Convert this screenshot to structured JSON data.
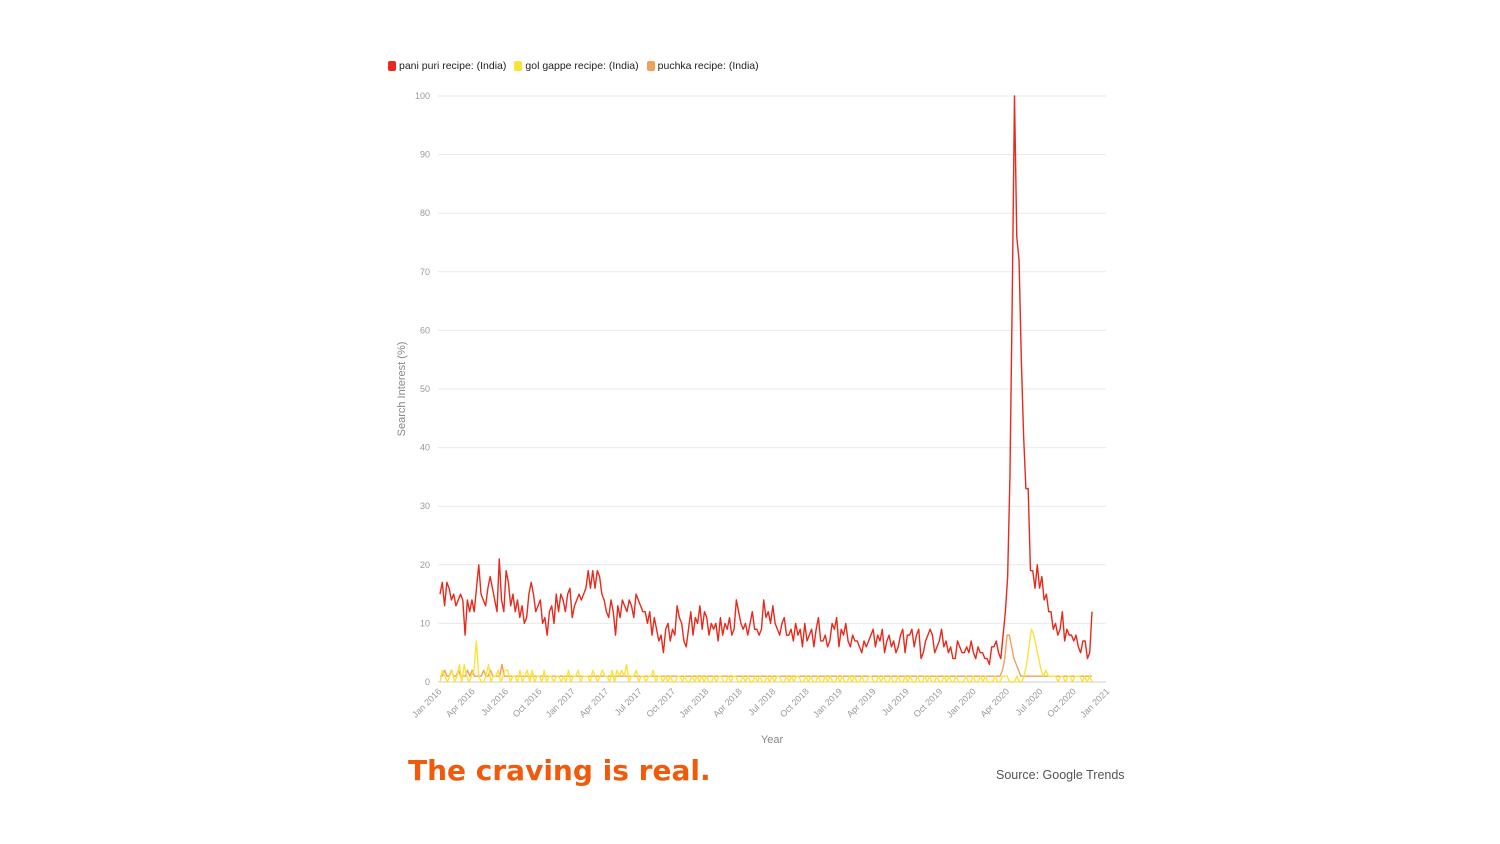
{
  "chart_data": {
    "type": "line",
    "xlabel": "Year",
    "ylabel": "Search Interest (%)",
    "ylim": [
      0,
      100
    ],
    "y_ticks": [
      "0",
      "10",
      "20",
      "30",
      "40",
      "50",
      "60",
      "70",
      "80",
      "90",
      "100"
    ],
    "x_ticks": [
      "Jan 2016",
      "Apr 2016",
      "Jul 2016",
      "Oct 2016",
      "Jan 2017",
      "Apr 2017",
      "Jul 2017",
      "Oct 2017",
      "Jan 2018",
      "Apr 2018",
      "Jul 2018",
      "Oct 2018",
      "Jan 2019",
      "Apr 2019",
      "Jul 2019",
      "Oct 2019",
      "Jan 2020",
      "Apr 2020",
      "Jul 2020",
      "Oct 2020",
      "Jan 2021"
    ],
    "x_start": "Jan 2016",
    "x_interval": "weekly",
    "grid": true,
    "legend_position": "top-left",
    "series": [
      {
        "name": "pani puri recipe: (India)",
        "color": "#e8291c",
        "values": [
          15,
          17,
          13,
          17,
          16,
          14,
          15,
          13,
          14,
          15,
          14,
          8,
          14,
          12,
          14,
          12,
          16,
          20,
          15,
          14,
          13,
          16,
          18,
          16,
          14,
          12,
          21,
          14,
          12,
          19,
          17,
          13,
          15,
          12,
          14,
          11,
          13,
          10,
          11,
          15,
          17,
          15,
          12,
          13,
          14,
          10,
          11,
          8,
          12,
          13,
          10,
          15,
          12,
          15,
          14,
          12,
          15,
          16,
          11,
          13,
          14,
          15,
          14,
          15,
          16,
          19,
          16,
          19,
          16,
          19,
          18,
          15,
          14,
          12,
          11,
          14,
          12,
          8,
          13,
          11,
          14,
          13,
          12,
          14,
          13,
          11,
          15,
          14,
          13,
          12,
          12,
          10,
          12,
          8,
          11,
          9,
          7,
          8,
          5,
          9,
          10,
          7,
          9,
          8,
          13,
          11,
          10,
          7,
          6,
          9,
          12,
          8,
          11,
          10,
          13,
          9,
          12,
          11,
          8,
          10,
          9,
          10,
          7,
          11,
          8,
          10,
          9,
          11,
          8,
          9,
          14,
          12,
          10,
          9,
          10,
          8,
          10,
          12,
          9,
          9,
          8,
          9,
          14,
          11,
          12,
          10,
          13,
          10,
          9,
          8,
          10,
          11,
          8,
          8,
          9,
          7,
          10,
          8,
          9,
          6,
          10,
          7,
          8,
          9,
          6,
          9,
          11,
          7,
          7,
          8,
          6,
          7,
          10,
          9,
          11,
          6,
          9,
          8,
          10,
          7,
          6,
          8,
          7,
          7,
          6,
          5,
          7,
          6,
          7,
          8,
          9,
          6,
          8,
          7,
          9,
          5,
          7,
          8,
          6,
          7,
          5,
          6,
          8,
          9,
          5,
          8,
          8,
          9,
          6,
          8,
          9,
          4,
          5,
          7,
          8,
          9,
          8,
          5,
          6,
          7,
          9,
          6,
          7,
          5,
          6,
          4,
          4,
          7,
          6,
          5,
          5,
          6,
          5,
          7,
          5,
          4,
          6,
          5,
          5,
          4,
          4,
          3,
          6,
          6,
          7,
          5,
          4,
          8,
          12,
          18,
          35,
          65,
          100,
          76,
          72,
          55,
          42,
          33,
          33,
          19,
          19,
          16,
          20,
          16,
          18,
          14,
          15,
          12,
          12,
          9,
          10,
          8,
          9,
          12,
          7,
          9,
          8,
          8,
          7,
          8,
          6,
          5,
          7,
          7,
          4,
          5,
          12
        ],
        "band": [
          "Jan 2016",
          "Jan 2021"
        ]
      },
      {
        "name": "gol gappe recipe: (India)",
        "color": "#fbe33a",
        "values": [
          0,
          2,
          1,
          0,
          1,
          2,
          0,
          1,
          3,
          0,
          3,
          1,
          0,
          1,
          2,
          7,
          1,
          0,
          0,
          1,
          3,
          0,
          1,
          1,
          2,
          0,
          1,
          2,
          2,
          0,
          1,
          1,
          0,
          2,
          0,
          1,
          2,
          0,
          2,
          0,
          1,
          1,
          0,
          2,
          0,
          1,
          1,
          0,
          1,
          1,
          0,
          1,
          0,
          2,
          0,
          1,
          1,
          2,
          0,
          1,
          1,
          1,
          0,
          2,
          1,
          0,
          1,
          2,
          1,
          1,
          0,
          2,
          0,
          2,
          1,
          2,
          1,
          3,
          0,
          1,
          1,
          2,
          0,
          1,
          1,
          0,
          1,
          1,
          2,
          0,
          1,
          1,
          0,
          1,
          0,
          1,
          0,
          0,
          1,
          1,
          0,
          1,
          0,
          0,
          1,
          0,
          1,
          0,
          1,
          0,
          1,
          0,
          0,
          1,
          0,
          1,
          1,
          0,
          0,
          1,
          0,
          1,
          1,
          0,
          0,
          1,
          0,
          1,
          0,
          0,
          1,
          0,
          1,
          0,
          0,
          1,
          0,
          1,
          0,
          1,
          1,
          0,
          0,
          1,
          0,
          1,
          0,
          1,
          1,
          0,
          0,
          1,
          0,
          1,
          0,
          0,
          1,
          0,
          0,
          1,
          0,
          1,
          0,
          0,
          1,
          0,
          1,
          0,
          0,
          1,
          0,
          1,
          0,
          0,
          1,
          0,
          0,
          1,
          1,
          0,
          0,
          1,
          0,
          1,
          0,
          0,
          1,
          0,
          0,
          1,
          0,
          0,
          1,
          0,
          1,
          0,
          0,
          1,
          0,
          0,
          1,
          0,
          1,
          0,
          0,
          1,
          0,
          0,
          1,
          0,
          1,
          0,
          0,
          1,
          0,
          0,
          0,
          1,
          0,
          0,
          1,
          0,
          0,
          1,
          0,
          1,
          0,
          0,
          0,
          1,
          0,
          0,
          1,
          1,
          1,
          0,
          0,
          0,
          1,
          0,
          0,
          1,
          3,
          6,
          9,
          8,
          6,
          4,
          2,
          1,
          2,
          1,
          1,
          1,
          1,
          0,
          1,
          1,
          0,
          1,
          1,
          0,
          1,
          1,
          1,
          0,
          1,
          0,
          1,
          0
        ],
        "band": [
          "Jan 2016",
          "Jan 2021"
        ]
      },
      {
        "name": "puchka recipe: (India)",
        "color": "#f3a05a",
        "values": [
          1,
          1,
          2,
          1,
          1,
          2,
          1,
          1,
          2,
          1,
          1,
          1,
          2,
          1,
          2,
          1,
          1,
          1,
          1,
          2,
          1,
          1,
          2,
          1,
          1,
          1,
          1,
          3,
          1,
          1,
          1,
          1,
          1,
          1,
          1,
          1,
          1,
          1,
          1,
          1,
          1,
          1,
          1,
          1,
          1,
          1,
          1,
          1,
          1,
          1,
          1,
          1,
          1,
          1,
          1,
          1,
          1,
          1,
          1,
          1,
          1,
          1,
          1,
          1,
          1,
          1,
          1,
          1,
          1,
          1,
          1,
          1,
          1,
          1,
          1,
          1,
          1,
          1,
          1,
          1,
          1,
          1,
          1,
          1,
          1,
          1,
          1,
          1,
          1,
          1,
          1,
          1,
          1,
          1,
          1,
          1,
          1,
          1,
          1,
          1,
          1,
          1,
          1,
          1,
          1,
          1,
          1,
          1,
          1,
          1,
          1,
          1,
          1,
          1,
          1,
          1,
          1,
          1,
          1,
          1,
          1,
          1,
          1,
          1,
          1,
          1,
          1,
          1,
          1,
          1,
          1,
          1,
          1,
          1,
          1,
          1,
          1,
          1,
          1,
          1,
          1,
          1,
          1,
          1,
          1,
          1,
          1,
          1,
          1,
          1,
          1,
          1,
          1,
          1,
          1,
          1,
          1,
          1,
          1,
          1,
          1,
          1,
          1,
          1,
          1,
          1,
          1,
          1,
          1,
          1,
          1,
          1,
          1,
          1,
          1,
          1,
          1,
          1,
          1,
          1,
          1,
          1,
          1,
          1,
          1,
          1,
          1,
          1,
          1,
          1,
          1,
          1,
          1,
          1,
          1,
          1,
          1,
          1,
          1,
          1,
          1,
          1,
          1,
          1,
          1,
          1,
          1,
          1,
          1,
          1,
          1,
          1,
          1,
          1,
          1,
          1,
          1,
          1,
          1,
          1,
          1,
          1,
          1,
          1,
          1,
          1,
          1,
          1,
          1,
          1,
          1,
          1,
          1,
          1,
          1,
          1,
          1,
          1,
          1,
          1,
          1,
          1,
          1,
          1,
          1,
          2,
          4,
          8,
          8,
          6,
          4,
          3,
          2,
          1,
          1,
          1,
          1,
          1,
          1,
          1,
          1,
          1,
          1,
          1,
          1,
          1,
          1,
          1,
          1,
          1,
          1,
          1,
          1,
          1,
          1,
          1,
          1,
          1,
          1,
          1,
          1,
          1,
          1,
          1,
          1
        ],
        "band": [
          "Jan 2016",
          "Jan 2021"
        ]
      }
    ]
  },
  "caption": "The craving is real.",
  "source": "Source: Google Trends"
}
